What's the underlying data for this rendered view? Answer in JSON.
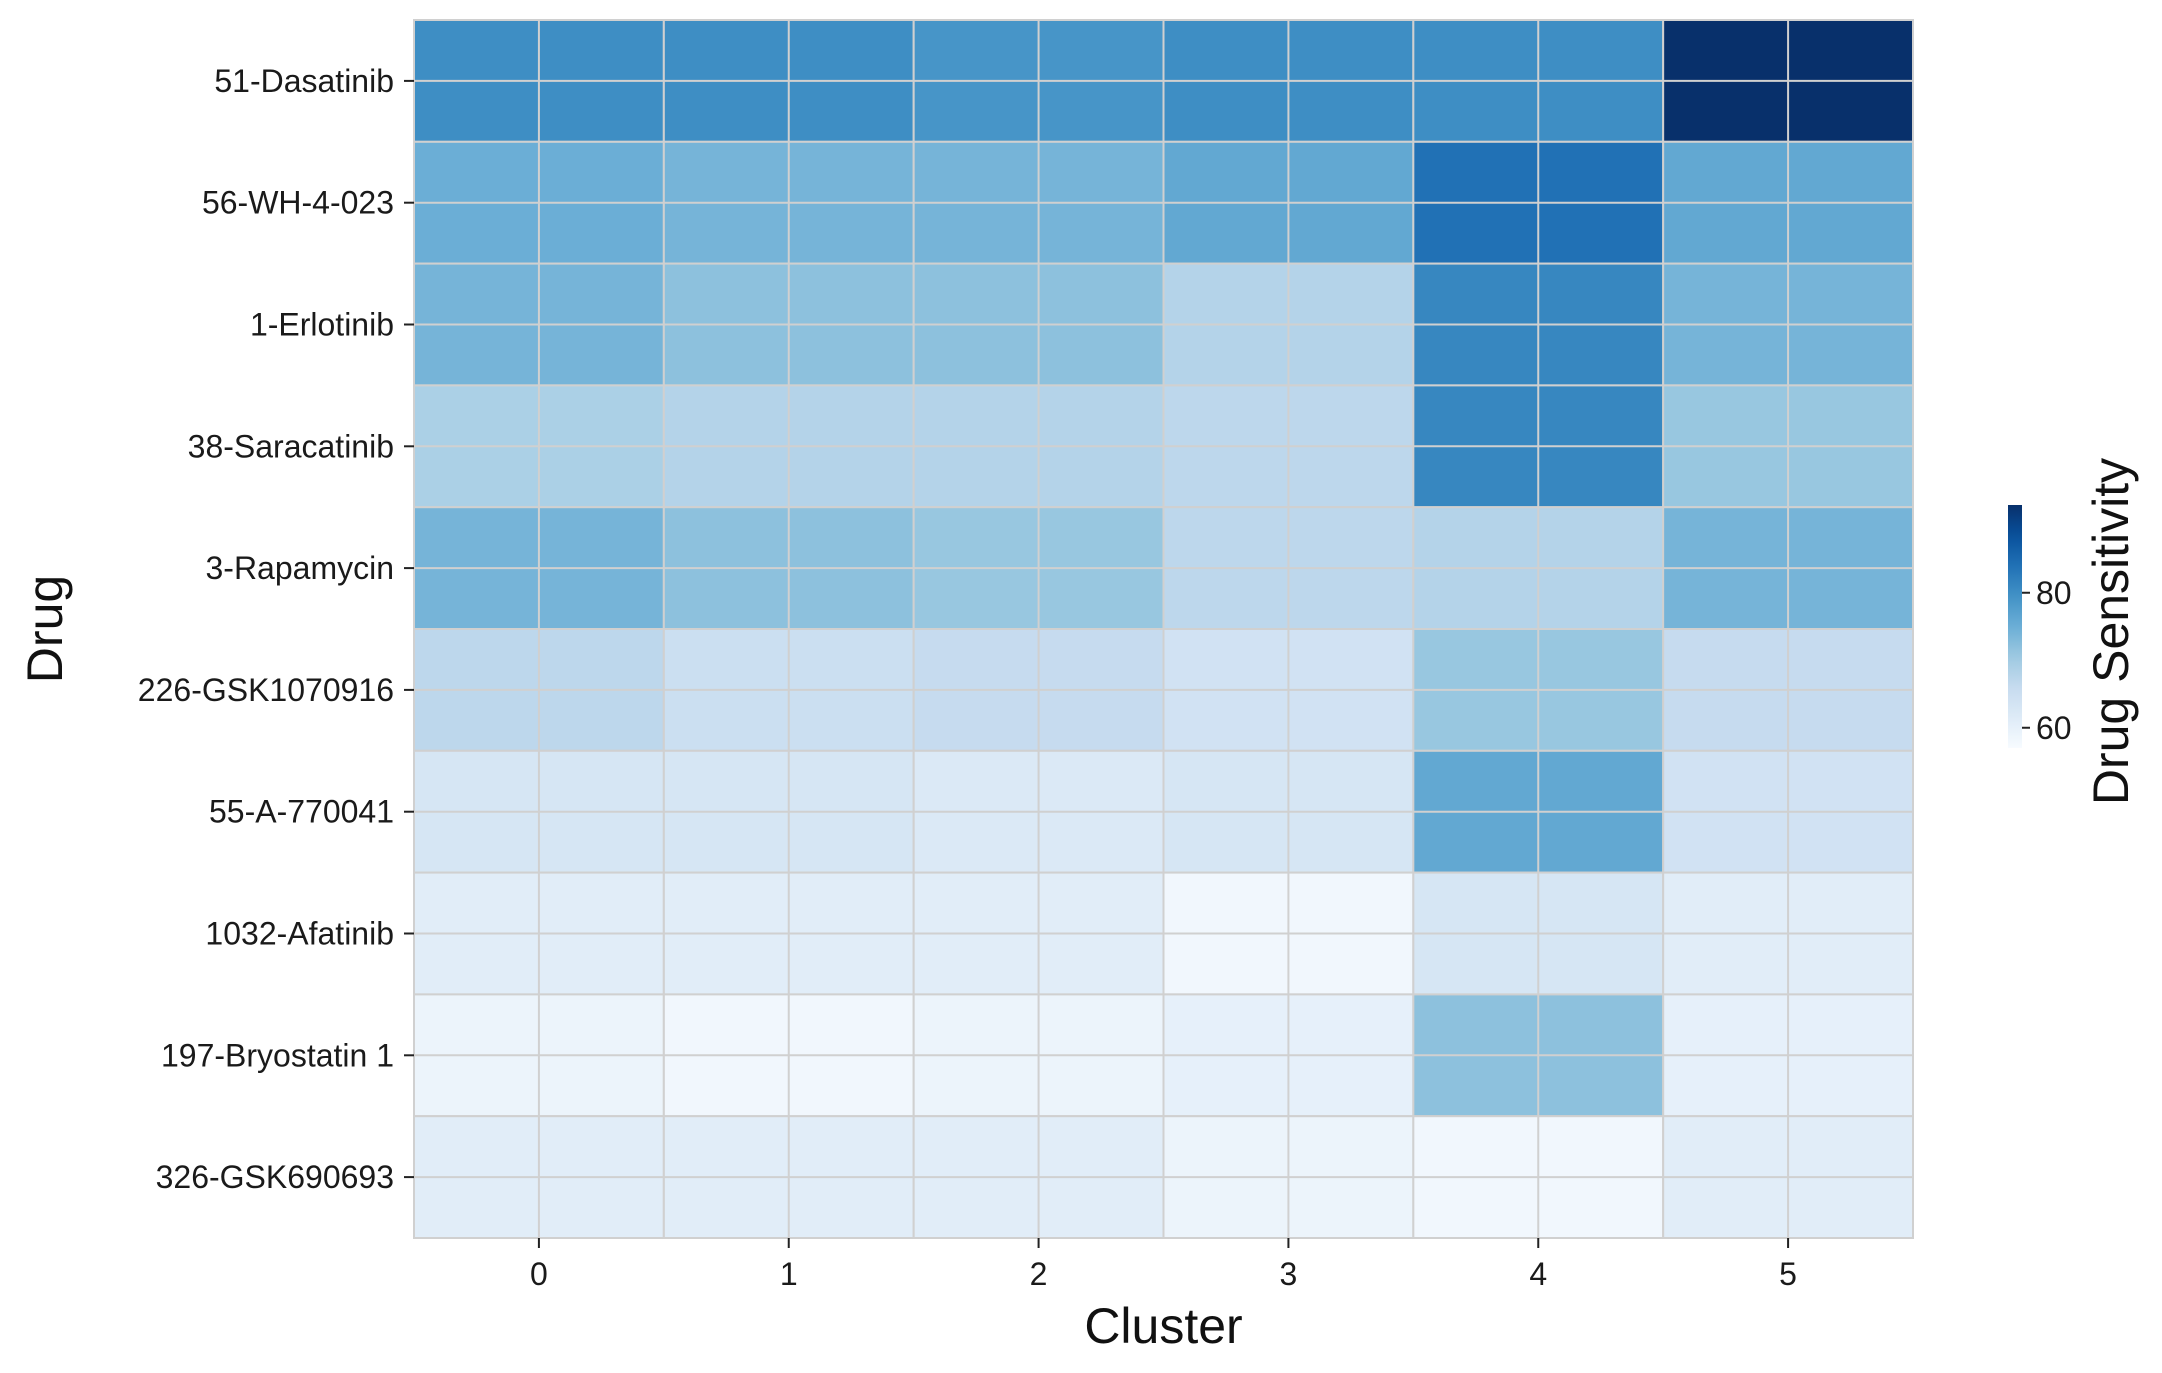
{
  "chart_data": {
    "type": "heatmap",
    "xlabel": "Cluster",
    "ylabel": "Drug",
    "colorbar_label": "Drug Sensitivity",
    "colorbar_ticks": [
      60,
      80
    ],
    "colorbar_range": [
      57,
      93
    ],
    "colormap": "Blues",
    "cell_border_color": "#d0d0d0",
    "grid": true,
    "x_categories": [
      "0",
      "1",
      "2",
      "3",
      "4",
      "5"
    ],
    "y_categories": [
      "51-Dasatinib",
      "56-WH-4-023",
      "1-Erlotinib",
      "38-Saracatinib",
      "3-Rapamycin",
      "226-GSK1070916",
      "55-A-770041",
      "1032-Afatinib",
      "197-Bryostatin 1",
      "326-GSK690693"
    ],
    "values": [
      [
        80,
        80,
        79,
        80,
        80,
        93
      ],
      [
        75,
        74,
        74,
        76,
        84,
        76
      ],
      [
        74,
        72,
        72,
        68,
        81,
        74
      ],
      [
        69,
        68,
        68,
        67,
        81,
        71
      ],
      [
        74,
        72,
        71,
        67,
        68,
        74
      ],
      [
        67,
        65,
        66,
        64,
        71,
        66
      ],
      [
        63,
        63,
        62,
        63,
        76,
        64
      ],
      [
        61,
        61,
        61,
        58,
        63,
        61
      ],
      [
        59,
        58,
        59,
        60,
        72,
        60
      ],
      [
        61,
        61,
        61,
        59,
        58,
        61
      ]
    ]
  }
}
